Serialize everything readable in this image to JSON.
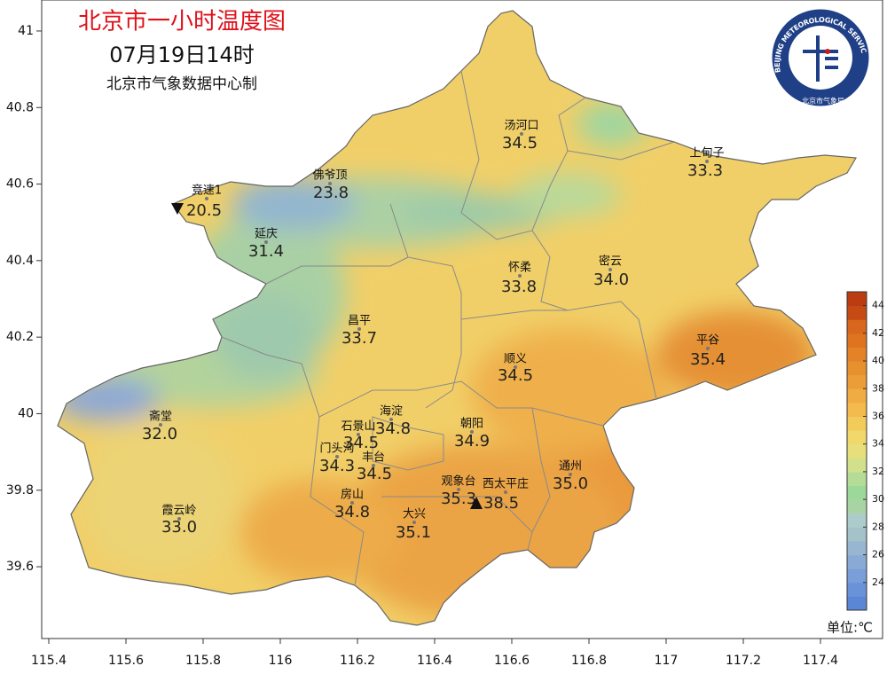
{
  "header": {
    "title": "北京市一小时温度图",
    "time": "07月19日14时",
    "source": "北京市气象数据中心制"
  },
  "logo": {
    "text_en": "BEIJING METEOROLOGICAL SERVICE",
    "text_cn": "北京市气象局"
  },
  "axes": {
    "xlim": [
      115.3816,
      117.5609
    ],
    "ylim": [
      39.4124,
      41.081
    ],
    "xticks": [
      115.4,
      115.6,
      115.8,
      116,
      116.2,
      116.4,
      116.6,
      116.8,
      117,
      117.2,
      117.4
    ],
    "yticks": [
      39.6,
      39.8,
      40,
      40.2,
      40.4,
      40.6,
      40.8,
      41
    ]
  },
  "stations": [
    {
      "name": "汤河口",
      "value": "34.5"
    },
    {
      "name": "上甸子",
      "value": "33.3"
    },
    {
      "name": "佛爷顶",
      "value": "23.8"
    },
    {
      "name": "竞速1",
      "value": "20.5"
    },
    {
      "name": "延庆",
      "value": "31.4"
    },
    {
      "name": "怀柔",
      "value": "33.8"
    },
    {
      "name": "密云",
      "value": "34.0"
    },
    {
      "name": "昌平",
      "value": "33.7"
    },
    {
      "name": "平谷",
      "value": "35.4"
    },
    {
      "name": "顺义",
      "value": "34.5"
    },
    {
      "name": "海淀",
      "value": "34.8"
    },
    {
      "name": "朝阳",
      "value": "34.9"
    },
    {
      "name": "斋堂",
      "value": "32.0"
    },
    {
      "name": "石景山",
      "value": "34.5"
    },
    {
      "name": "门头沟",
      "value": "34.3"
    },
    {
      "name": "丰台",
      "value": "34.5"
    },
    {
      "name": "观象台",
      "value": "35.3"
    },
    {
      "name": "通州",
      "value": "35.0"
    },
    {
      "name": "西太平庄",
      "value": "38.5"
    },
    {
      "name": "房山",
      "value": "34.8"
    },
    {
      "name": "大兴",
      "value": "35.1"
    },
    {
      "name": "霞云岭",
      "value": "33.0"
    }
  ],
  "colorbar": {
    "range": [
      22,
      45
    ],
    "ticks": [
      24,
      26,
      28,
      30,
      32,
      34,
      36,
      38,
      40,
      42,
      44
    ],
    "colors": [
      "#5b86d6",
      "#6a92d8",
      "#7a9ed8",
      "#8aaad6",
      "#98b6d2",
      "#a4c2c8",
      "#accccb",
      "#a8d4a4",
      "#9cd89a",
      "#b4dc96",
      "#d2e08c",
      "#e8df7c",
      "#f2d86a",
      "#f3cb5a",
      "#f2bb4c",
      "#efac42",
      "#eb9e38",
      "#e7902e",
      "#e38226",
      "#de7420",
      "#d8661c",
      "#c64a14",
      "#bb3c10"
    ],
    "unit": "单位:℃"
  }
}
